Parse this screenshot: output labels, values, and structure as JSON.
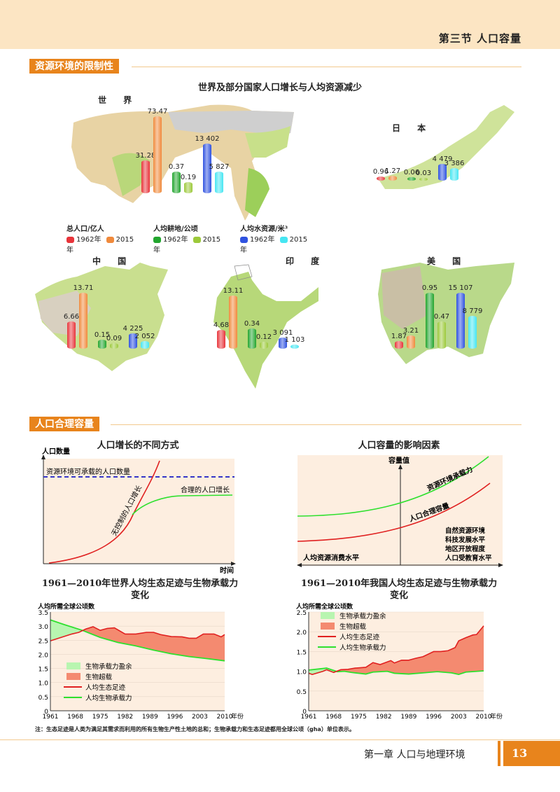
{
  "header": {
    "section": "第三节  人口容量"
  },
  "section1": {
    "tag": "资源环境的限制性",
    "figure_title": "世界及部分国家人口增长与人均资源减少"
  },
  "maps": [
    {
      "id": "world",
      "label": "世 界",
      "bars": [
        {
          "metric": "pop",
          "year": "1962",
          "value": 31.28,
          "text": "31.28"
        },
        {
          "metric": "pop",
          "year": "2015",
          "value": 73.47,
          "text": "73.47"
        },
        {
          "metric": "land",
          "year": "1962",
          "value": 0.37,
          "text": "0.37"
        },
        {
          "metric": "land",
          "year": "2015",
          "value": 0.19,
          "text": "0.19"
        },
        {
          "metric": "water",
          "year": "1962",
          "value": 13402,
          "text": "13 402"
        },
        {
          "metric": "water",
          "year": "2015",
          "value": 5827,
          "text": "5 827"
        }
      ]
    },
    {
      "id": "japan",
      "label": "日 本",
      "bars": [
        {
          "metric": "pop",
          "year": "1962",
          "value": 0.96,
          "text": "0.96"
        },
        {
          "metric": "pop",
          "year": "2015",
          "value": 1.27,
          "text": "1.27"
        },
        {
          "metric": "land",
          "year": "1962",
          "value": 0.06,
          "text": "0.06"
        },
        {
          "metric": "land",
          "year": "2015",
          "value": 0.03,
          "text": "0.03"
        },
        {
          "metric": "water",
          "year": "1962",
          "value": 4479,
          "text": "4 479"
        },
        {
          "metric": "water",
          "year": "2015",
          "value": 3386,
          "text": "3 386"
        }
      ]
    },
    {
      "id": "china",
      "label": "中 国",
      "bars": [
        {
          "metric": "pop",
          "year": "1962",
          "value": 6.66,
          "text": "6.66"
        },
        {
          "metric": "pop",
          "year": "2015",
          "value": 13.71,
          "text": "13.71"
        },
        {
          "metric": "land",
          "year": "1962",
          "value": 0.15,
          "text": "0.15"
        },
        {
          "metric": "land",
          "year": "2015",
          "value": 0.09,
          "text": "0.09"
        },
        {
          "metric": "water",
          "year": "1962",
          "value": 4225,
          "text": "4 225"
        },
        {
          "metric": "water",
          "year": "2015",
          "value": 2052,
          "text": "2 052"
        }
      ]
    },
    {
      "id": "india",
      "label": "印 度",
      "bars": [
        {
          "metric": "pop",
          "year": "1962",
          "value": 4.68,
          "text": "4.68"
        },
        {
          "metric": "pop",
          "year": "2015",
          "value": 13.11,
          "text": "13.11"
        },
        {
          "metric": "land",
          "year": "1962",
          "value": 0.34,
          "text": "0.34"
        },
        {
          "metric": "land",
          "year": "2015",
          "value": 0.12,
          "text": "0.12"
        },
        {
          "metric": "water",
          "year": "1962",
          "value": 3091,
          "text": "3 091"
        },
        {
          "metric": "water",
          "year": "2015",
          "value": 1103,
          "text": "1 103"
        }
      ]
    },
    {
      "id": "usa",
      "label": "美 国",
      "bars": [
        {
          "metric": "pop",
          "year": "1962",
          "value": 1.87,
          "text": "1.87"
        },
        {
          "metric": "pop",
          "year": "2015",
          "value": 3.21,
          "text": "3.21"
        },
        {
          "metric": "land",
          "year": "1962",
          "value": 0.95,
          "text": "0.95"
        },
        {
          "metric": "land",
          "year": "2015",
          "value": 0.47,
          "text": "0.47"
        },
        {
          "metric": "water",
          "year": "1962",
          "value": 15107,
          "text": "15 107"
        },
        {
          "metric": "water",
          "year": "2015",
          "value": 8779,
          "text": "8 779"
        }
      ]
    }
  ],
  "legend": {
    "groups": [
      {
        "title": "总人口/亿人",
        "items": [
          {
            "label": "1962年",
            "color": "#e8343a"
          },
          {
            "label": "2015年",
            "color": "#f08a3c"
          }
        ]
      },
      {
        "title": "人均耕地/公顷",
        "items": [
          {
            "label": "1962年",
            "color": "#22a52e"
          },
          {
            "label": "2015年",
            "color": "#9cc93a"
          }
        ]
      },
      {
        "title": "人均水资源/米³",
        "items": [
          {
            "label": "1962年",
            "color": "#2f52e0"
          },
          {
            "label": "2015年",
            "color": "#46e6f2"
          }
        ]
      }
    ]
  },
  "section2": {
    "tag": "人口合理容量"
  },
  "diagram1": {
    "title": "人口增长的不同方式",
    "ylabel": "人口数量",
    "xlabel": "时间",
    "capacity_label": "资源环境可承载的人口数量",
    "reasonable_label": "合理的人口增长",
    "uncontrolled_label": "无控制的人口增长"
  },
  "diagram2": {
    "title": "人口容量的影响因素",
    "ylabel": "容量值",
    "green_label": "资源环境承载力",
    "red_label": "人口合理容量",
    "left_label": "人均资源消费水平",
    "factors": [
      "自然资源环境",
      "科技发展水平",
      "地区开放程度",
      "人口受教育水平"
    ]
  },
  "chart_data": [
    {
      "type": "area",
      "title": "1961—2010年世界人均生态足迹与生物承载力变化",
      "ylabel": "人均所需全球公顷数",
      "xlabel": "年份",
      "xlabel_suffix": "年份",
      "ylim": [
        0,
        3.5
      ],
      "yticks": [
        "0",
        "0.5",
        "1.0",
        "1.5",
        "2.0",
        "2.5",
        "3.0",
        "3.5"
      ],
      "xticks": [
        "1961",
        "1968",
        "1975",
        "1982",
        "1989",
        "1996",
        "2003",
        "2010"
      ],
      "grid": true,
      "legend": [
        "生物承载力盈余",
        "生物超载",
        "人均生态足迹",
        "人均生物承载力"
      ],
      "legend_position": "bottom-left",
      "series": [
        {
          "name": "人均生态足迹",
          "color": "#e02020",
          "x": [
            1961,
            1964,
            1967,
            1969,
            1971,
            1973,
            1975,
            1977,
            1979,
            1982,
            1985,
            1988,
            1990,
            1992,
            1995,
            1998,
            2000,
            2002,
            2004,
            2007,
            2009,
            2010
          ],
          "y": [
            2.48,
            2.6,
            2.72,
            2.78,
            2.9,
            2.98,
            2.85,
            2.92,
            2.94,
            2.72,
            2.72,
            2.78,
            2.78,
            2.7,
            2.63,
            2.62,
            2.57,
            2.57,
            2.72,
            2.72,
            2.62,
            2.7
          ]
        },
        {
          "name": "人均生物承载力",
          "color": "#2ee02e",
          "x": [
            1961,
            1965,
            1970,
            1975,
            1980,
            1985,
            1990,
            1995,
            2000,
            2005,
            2010
          ],
          "y": [
            3.22,
            3.05,
            2.85,
            2.6,
            2.42,
            2.3,
            2.15,
            2.02,
            1.92,
            1.85,
            1.77
          ]
        }
      ]
    },
    {
      "type": "area",
      "title": "1961—2010年我国人均生态足迹与生物承载力变化",
      "ylabel": "人均所需全球公顷数",
      "xlabel": "年份",
      "xlabel_suffix": "年份",
      "ylim": [
        0,
        2.5
      ],
      "yticks": [
        "0",
        "0.5",
        "1.0",
        "1.5",
        "2.0",
        "2.5"
      ],
      "xticks": [
        "1961",
        "1968",
        "1975",
        "1982",
        "1989",
        "1996",
        "2003",
        "2010"
      ],
      "grid": true,
      "legend": [
        "生物承载力盈余",
        "生物超载",
        "人均生态足迹",
        "人均生物承载力"
      ],
      "legend_position": "top-left",
      "series": [
        {
          "name": "人均生态足迹",
          "color": "#e02020",
          "x": [
            1961,
            1962,
            1965,
            1966,
            1968,
            1970,
            1972,
            1974,
            1977,
            1979,
            1981,
            1984,
            1985,
            1987,
            1989,
            1991,
            1993,
            1996,
            1998,
            2000,
            2002,
            2003,
            2005,
            2007,
            2008,
            2010
          ],
          "y": [
            0.95,
            0.92,
            1.0,
            1.04,
            0.97,
            1.04,
            1.05,
            1.08,
            1.1,
            1.22,
            1.17,
            1.27,
            1.21,
            1.28,
            1.28,
            1.33,
            1.37,
            1.5,
            1.5,
            1.52,
            1.6,
            1.77,
            1.85,
            1.92,
            1.93,
            2.15
          ]
        },
        {
          "name": "人均生物承载力",
          "color": "#2ee02e",
          "x": [
            1961,
            1966,
            1969,
            1971,
            1973,
            1977,
            1979,
            1983,
            1985,
            1989,
            1993,
            1997,
            2001,
            2003,
            2005,
            2010
          ],
          "y": [
            1.03,
            1.08,
            0.99,
            1.0,
            0.97,
            0.93,
            0.98,
            1.0,
            0.95,
            0.93,
            0.96,
            0.99,
            0.96,
            0.92,
            0.98,
            1.01
          ]
        }
      ]
    }
  ],
  "colors": {
    "accent": "#e8841c",
    "surplus": "#b8f5b0",
    "overshoot": "#f48a70",
    "plot_bg": "#fdeee0"
  },
  "note": "注：生态足迹是人类为满足其需求而利用的所有生物生产性土地的总和；生物承载力和生态足迹都用全球公顷（gha）单位表示。",
  "footer": {
    "chapter": "第一章    人口与地理环境",
    "page": "13"
  }
}
